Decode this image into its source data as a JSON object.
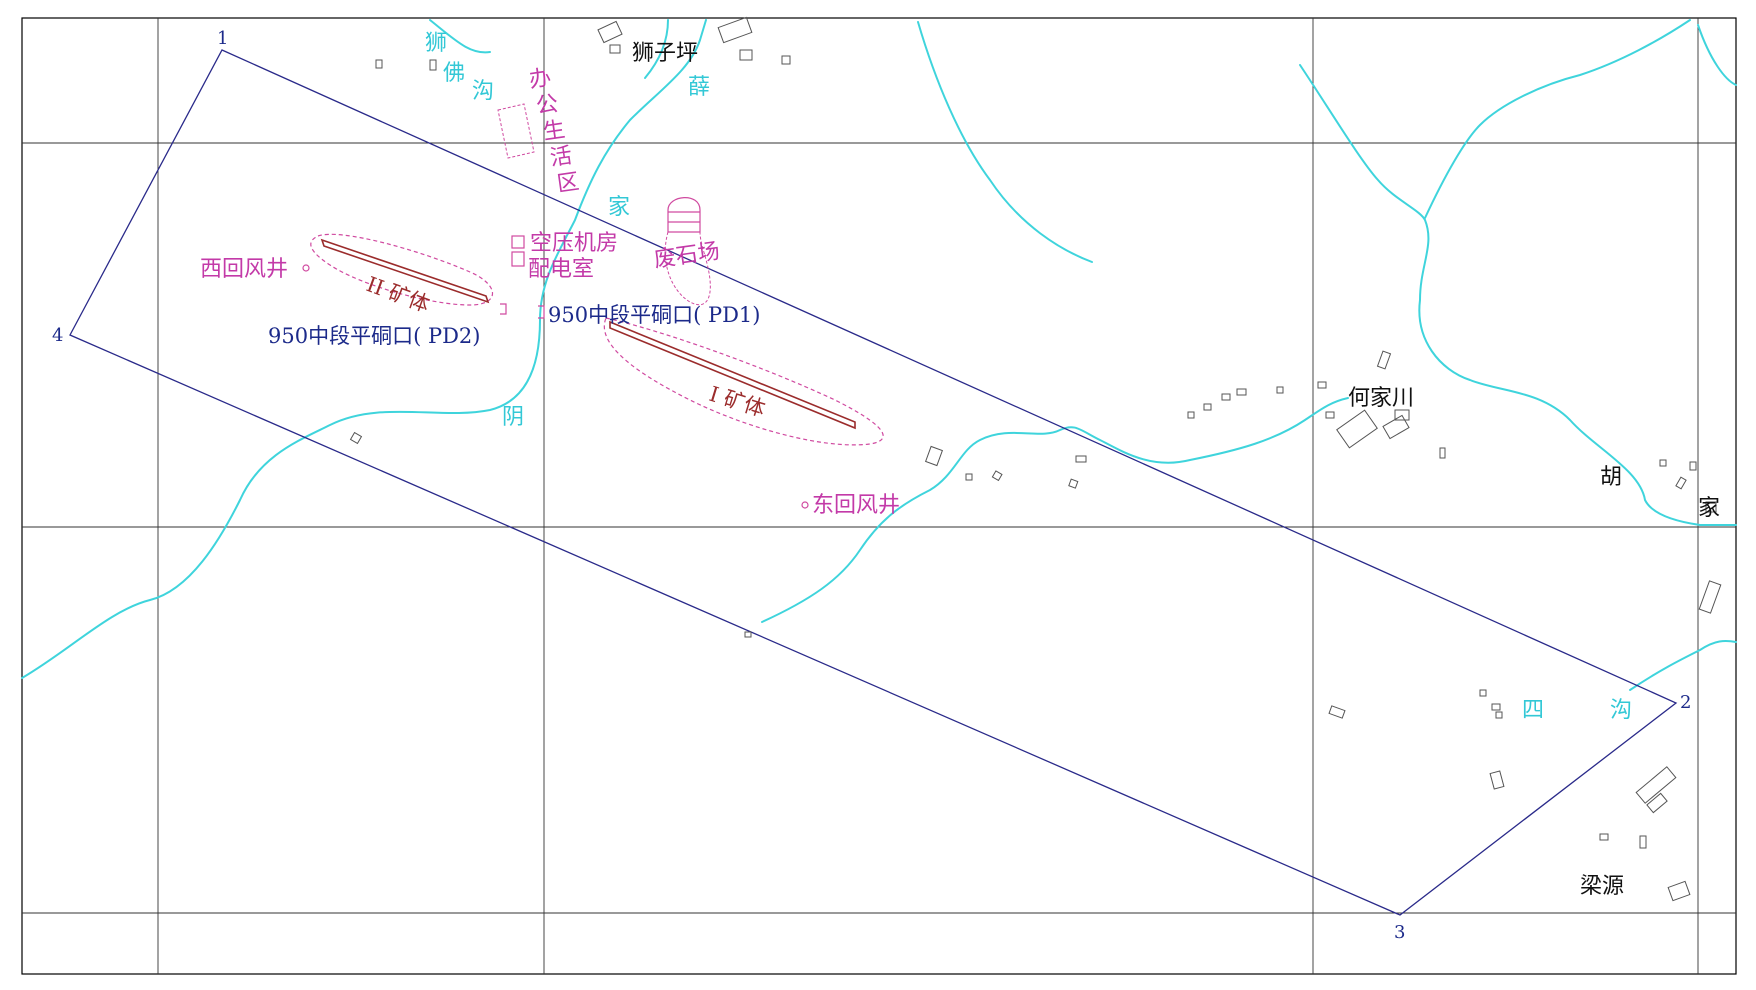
{
  "colors": {
    "water": "#3fd4dc",
    "boundary": "#2a2a8a",
    "facility": "#c33aa8",
    "ore_body": "#9b2c2c",
    "adit": "#1c2a8a",
    "place": "#111111"
  },
  "corners": [
    "1",
    "2",
    "3",
    "4"
  ],
  "water_labels": {
    "shi": "狮",
    "fo": "佛",
    "gou1": "沟",
    "xue": "薛",
    "jia1": "家",
    "yin": "阴",
    "si": "四",
    "gou2": "沟"
  },
  "places": {
    "shizi_ping": "狮子坪",
    "hejiachuan": "何家川",
    "hu": "胡",
    "jia2": "家",
    "liangyuan": "梁源"
  },
  "facilities": {
    "office_area": [
      "办",
      "公",
      "生",
      "活",
      "区"
    ],
    "compressor": "空压机房",
    "substation": "配电室",
    "waste_yard": "废石场",
    "west_shaft": "西回风井",
    "east_shaft": "东回风井"
  },
  "ore_bodies": {
    "ore1": "I 矿体",
    "ore2": "II 矿体"
  },
  "adits": {
    "pd1": "950中段平硐口(  PD1)",
    "pd2": "950中段平硐口(  PD2)"
  }
}
